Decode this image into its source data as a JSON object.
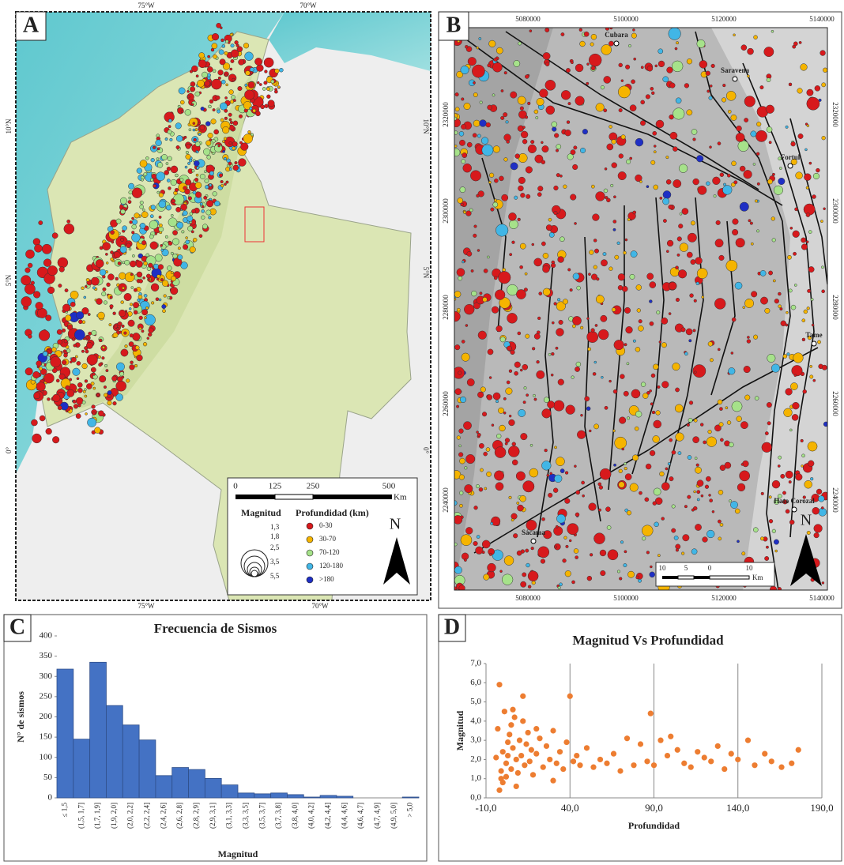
{
  "maps": [
    {
      "label": "A",
      "top_ticks": [
        "75°W",
        "70°W"
      ],
      "bottom_ticks": [
        "75°W",
        "70°W"
      ],
      "side_ticks": [
        "10°N",
        "5°N",
        "0°"
      ],
      "scale": [
        "0",
        "125",
        "250",
        "500",
        "Km"
      ],
      "legend_size_title": "Magnitud",
      "legend_sizes": [
        "1,3",
        "1,8",
        "2,5",
        "3,5",
        "5,5"
      ],
      "legend_depth_title": "Profundidad (km)",
      "legend_depths": [
        {
          "label": "0-30",
          "color": "#d7191c"
        },
        {
          "label": "30-70",
          "color": "#f5b400"
        },
        {
          "label": "70-120",
          "color": "#a6e28a"
        },
        {
          "label": "120-180",
          "color": "#41b6e6"
        },
        {
          "label": ">180",
          "color": "#1f2fc4"
        }
      ],
      "north": "N"
    },
    {
      "label": "B",
      "x_ticks": [
        "5080000",
        "5100000",
        "5120000",
        "5140000"
      ],
      "y_ticks": [
        "2320000",
        "2300000",
        "2280000",
        "2260000",
        "2240000"
      ],
      "towns": [
        "Cubara",
        "Saravena",
        "Fortul",
        "Tame",
        "Hato Corozal",
        "Sácama"
      ],
      "scale": [
        "10",
        "5",
        "0",
        "10",
        "Km"
      ],
      "north": "N"
    }
  ],
  "chart_data": [
    {
      "type": "bar",
      "panel": "C",
      "title": "Frecuencia de Sismos",
      "x_label": "Magnitud",
      "y_label": "N° de sismos",
      "color": "#4472c4",
      "categories": [
        "≤ 1,5",
        "(1,5, 1,7]",
        "(1,7, 1,9]",
        "(1,9, 2,0]",
        "(2,0, 2,2]",
        "(2,2, 2,4]",
        "(2,4, 2,6]",
        "(2,6, 2,8]",
        "(2,8, 2,9]",
        "(2,9, 3,1]",
        "(3,1, 3,3]",
        "(3,3, 3,5]",
        "(3,5, 3,7]",
        "(3,7, 3,8]",
        "(3,8, 4,0]",
        "(4,0, 4,2]",
        "(4,2, 4,4]",
        "(4,4, 4,6]",
        "(4,6, 4,7]",
        "(4,7, 4,9]",
        "(4,9, 5,0]",
        "> 5,0"
      ],
      "values": [
        318,
        145,
        335,
        228,
        180,
        143,
        55,
        75,
        70,
        48,
        32,
        12,
        10,
        12,
        8,
        2,
        6,
        4,
        0,
        0,
        0,
        2
      ],
      "ylim": [
        0,
        400
      ],
      "yticks": [
        0,
        50,
        100,
        150,
        200,
        250,
        300,
        350,
        400
      ],
      "grid": false
    },
    {
      "type": "scatter",
      "panel": "D",
      "title": "Magnitud Vs Profundidad",
      "x_label": "Profundidad",
      "y_label": "Magnitud",
      "color": "#ed7d31",
      "x": [
        -4,
        -3,
        -2,
        -1,
        0,
        1,
        2,
        3,
        4,
        5,
        6,
        7,
        8,
        9,
        10,
        11,
        12,
        13,
        14,
        15,
        16,
        17,
        18,
        20,
        22,
        24,
        26,
        28,
        30,
        32,
        34,
        36,
        38,
        40,
        42,
        44,
        46,
        50,
        54,
        58,
        62,
        66,
        70,
        74,
        78,
        82,
        86,
        88,
        90,
        94,
        98,
        100,
        104,
        108,
        112,
        116,
        120,
        124,
        128,
        132,
        136,
        140,
        146,
        150,
        156,
        160,
        166,
        172,
        176,
        -2,
        0,
        2,
        5,
        8,
        12,
        20,
        30,
        -1,
        3,
        6
      ],
      "y": [
        2.1,
        3.6,
        5.9,
        1.0,
        2.4,
        4.5,
        1.8,
        2.9,
        3.3,
        1.5,
        2.6,
        4.2,
        2.0,
        1.3,
        3.0,
        2.2,
        5.3,
        1.7,
        2.8,
        3.4,
        1.9,
        2.5,
        1.2,
        2.3,
        3.1,
        1.6,
        2.7,
        2.0,
        3.5,
        1.8,
        2.4,
        1.5,
        2.9,
        5.3,
        1.9,
        2.2,
        1.7,
        2.6,
        1.6,
        2.0,
        1.8,
        2.3,
        1.4,
        3.1,
        1.7,
        2.8,
        1.9,
        4.4,
        1.7,
        3.0,
        2.2,
        3.2,
        2.5,
        1.8,
        1.6,
        2.4,
        2.1,
        1.9,
        2.7,
        1.5,
        2.3,
        2.0,
        3.0,
        1.7,
        2.3,
        1.9,
        1.6,
        1.8,
        2.5,
        0.4,
        0.8,
        1.1,
        3.8,
        0.6,
        4.0,
        3.6,
        0.9,
        1.4,
        2.2,
        4.6
      ],
      "xlim": [
        -10,
        190
      ],
      "ylim": [
        0,
        7
      ],
      "xticks": [
        {
          "value": -10,
          "label": "-10,0"
        },
        {
          "value": 40,
          "label": "40,0"
        },
        {
          "value": 90,
          "label": "90,0"
        },
        {
          "value": 140,
          "label": "140,0"
        },
        {
          "value": 190,
          "label": "190,0"
        }
      ],
      "yticks": [
        {
          "value": 0,
          "label": "0,0"
        },
        {
          "value": 1,
          "label": "1,0"
        },
        {
          "value": 2,
          "label": "2,0"
        },
        {
          "value": 3,
          "label": "3,0"
        },
        {
          "value": 4,
          "label": "4,0"
        },
        {
          "value": 5,
          "label": "5,0"
        },
        {
          "value": 6,
          "label": "6,0"
        },
        {
          "value": 7,
          "label": "7,0"
        }
      ],
      "grid": true
    }
  ]
}
